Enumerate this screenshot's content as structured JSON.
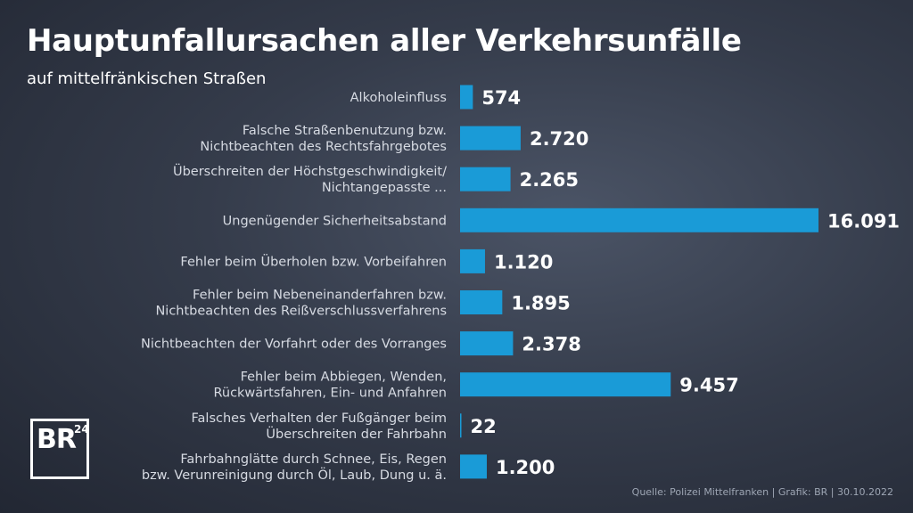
{
  "title": "Hauptunfallursachen aller Verkehrsunfälle",
  "subtitle": "auf mittelfränkischen Straßen",
  "source": "Quelle: Polizei Mittelfranken | Grafik: BR | 30.10.2022",
  "logo": {
    "main": "BR",
    "superscript": "24"
  },
  "colors": {
    "bar": "#1a9bd7",
    "background": "#353c4b"
  },
  "chart_data": {
    "type": "bar",
    "orientation": "horizontal",
    "categories": [
      [
        "Alkoholeinfluss"
      ],
      [
        "Falsche Straßenbenutzung bzw.",
        "Nichtbeachten des Rechtsfahrgebotes"
      ],
      [
        "Überschreiten der Höchstgeschwindigkeit/",
        "Nichtangepasste ..."
      ],
      [
        "Ungenügender Sicherheitsabstand"
      ],
      [
        "Fehler beim Überholen bzw. Vorbeifahren"
      ],
      [
        "Fehler beim Nebeneinanderfahren bzw.",
        "Nichtbeachten des Reißverschlussverfahrens"
      ],
      [
        "Nichtbeachten der Vorfahrt oder des Vorranges"
      ],
      [
        "Fehler beim Abbiegen, Wenden,",
        "Rückwärtsfahren, Ein- und Anfahren"
      ],
      [
        "Falsches Verhalten der Fußgänger beim",
        "Überschreiten der Fahrbahn"
      ],
      [
        "Fahrbahnglätte durch Schnee, Eis, Regen",
        "bzw. Verunreinigung durch Öl, Laub, Dung u. ä."
      ]
    ],
    "values": [
      574,
      2720,
      2265,
      16091,
      1120,
      1895,
      2378,
      9457,
      22,
      1200
    ],
    "value_labels": [
      "574",
      "2.720",
      "2.265",
      "16.091",
      "1.120",
      "1.895",
      "2.378",
      "9.457",
      "22",
      "1.200"
    ]
  }
}
